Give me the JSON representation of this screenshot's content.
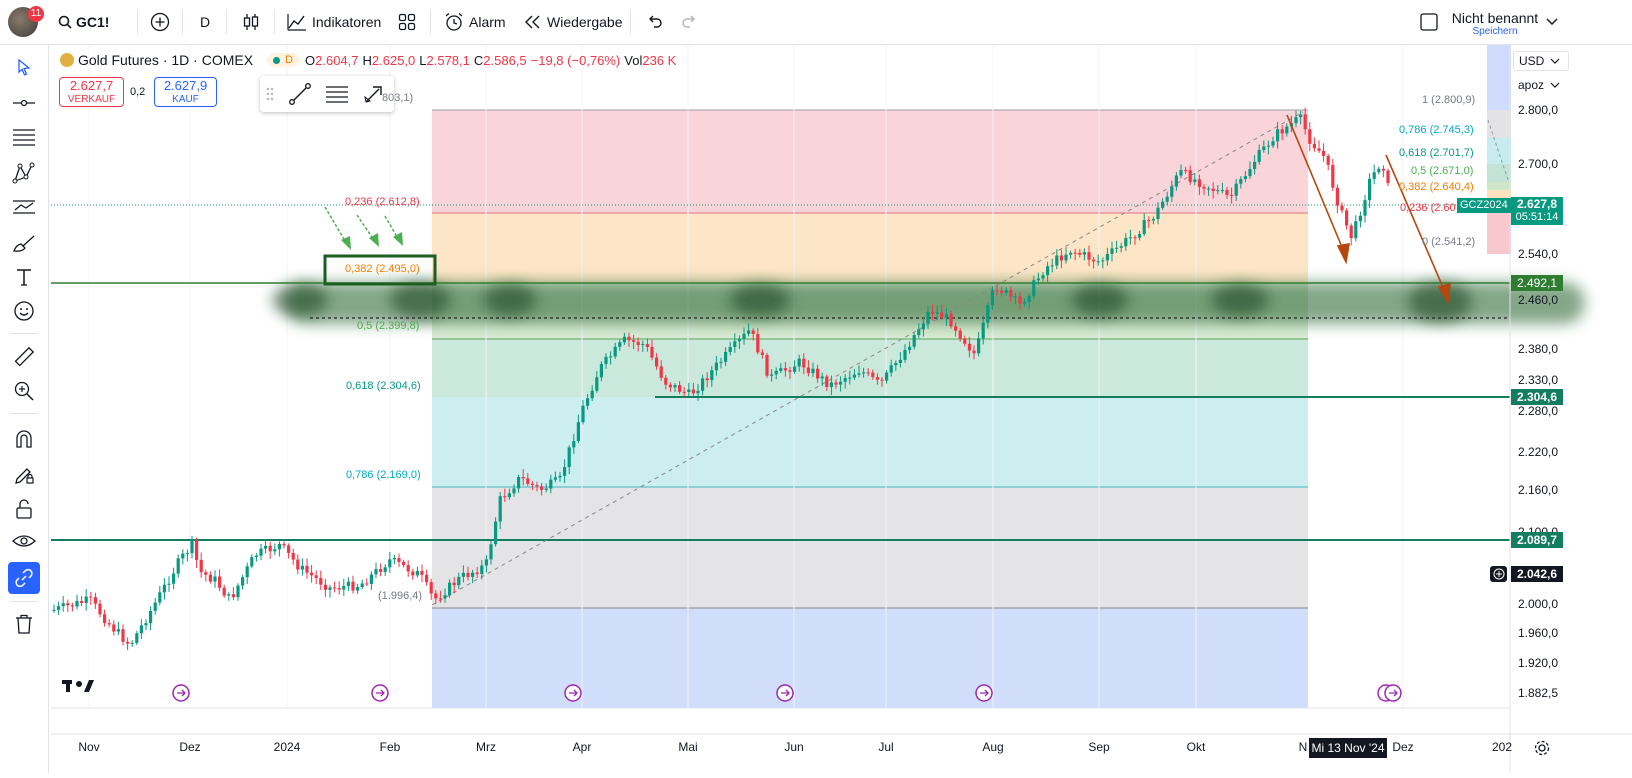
{
  "topbar": {
    "notification_count": "11",
    "symbol": "GC1!",
    "interval": "D",
    "indicators_label": "Indikatoren",
    "alert_label": "Alarm",
    "replay_label": "Wiedergabe",
    "layout_name": "Nicht benannt",
    "save_label": "Speichern"
  },
  "legend": {
    "title": "Gold Futures · 1D · COMEX",
    "open_label": "O",
    "open": "2.604,7",
    "high_label": "H",
    "high": "2.625,0",
    "low_label": "L",
    "low": "2.578,1",
    "close_label": "C",
    "close": "2.586,5",
    "change": "−19,8 (−0,76%)",
    "vol_label": "Vol",
    "volume": "236 K",
    "session_badge": "D"
  },
  "trade": {
    "sell_price": "2.627,7",
    "sell_label": "VERKAUF",
    "spread": "0,2",
    "buy_price": "2.627,9",
    "buy_label": "KAUF"
  },
  "right_header": {
    "currency": "USD",
    "scale_mode": "apoz"
  },
  "fib_left_labels": {
    "top_partial": "803,1)",
    "l236": "0,236 (2.612,8)",
    "l382": "0,382 (2.495,0)",
    "l5": "0,5 (2.399,8)",
    "l618": "0,618 (2.304,6)",
    "l786": "0,786 (2.169,0)",
    "l0_partial": "(1.996,4)"
  },
  "fib_right_labels": {
    "l1": "1 (2.800,9)",
    "l786": "0,786 (2.745,3)",
    "l618": "0,618 (2.701,7)",
    "l5": "0,5 (2.671,0)",
    "l382": "0,382 (2.640,4)",
    "l236": "0,236 (2.60",
    "l0": "0 (2.541,2)"
  },
  "price_axis": {
    "ticks": [
      {
        "label": "2.800,0",
        "value": 2800
      },
      {
        "label": "2.700,0",
        "value": 2700
      },
      {
        "label": "2.540,0",
        "value": 2540
      },
      {
        "label": "2.460,0",
        "value": 2460
      },
      {
        "label": "2.380,0",
        "value": 2380
      },
      {
        "label": "2.330,0",
        "value": 2330
      },
      {
        "label": "2.280,0",
        "value": 2280
      },
      {
        "label": "2.220,0",
        "value": 2220
      },
      {
        "label": "2.160,0",
        "value": 2160
      },
      {
        "label": "2.100,0",
        "value": 2100
      },
      {
        "label": "2.000,0",
        "value": 2000
      },
      {
        "label": "1.960,0",
        "value": 1960
      },
      {
        "label": "1.920,0",
        "value": 1920
      },
      {
        "label": "1.882,5",
        "value": 1882.5
      }
    ],
    "current_symbol": "GCZ2024",
    "current_price": "2.627,8",
    "countdown": "05:51:14",
    "line_2492": "2.492,1",
    "line_2304": "2.304,6",
    "line_2089": "2.089,7",
    "crosshair_price": "2.042,6"
  },
  "time_axis": {
    "labels": [
      "Nov",
      "Dez",
      "2024",
      "Feb",
      "Mrz",
      "Apr",
      "Mai",
      "Jun",
      "Jul",
      "Aug",
      "Sep",
      "Okt",
      "N",
      "Dez",
      "202"
    ],
    "crosshair_date": "Mi 13 Nov '24"
  },
  "colors": {
    "up": "#089981",
    "down": "#f23645",
    "accent": "#2962ff",
    "horizontal_line": "#137e5f"
  }
}
